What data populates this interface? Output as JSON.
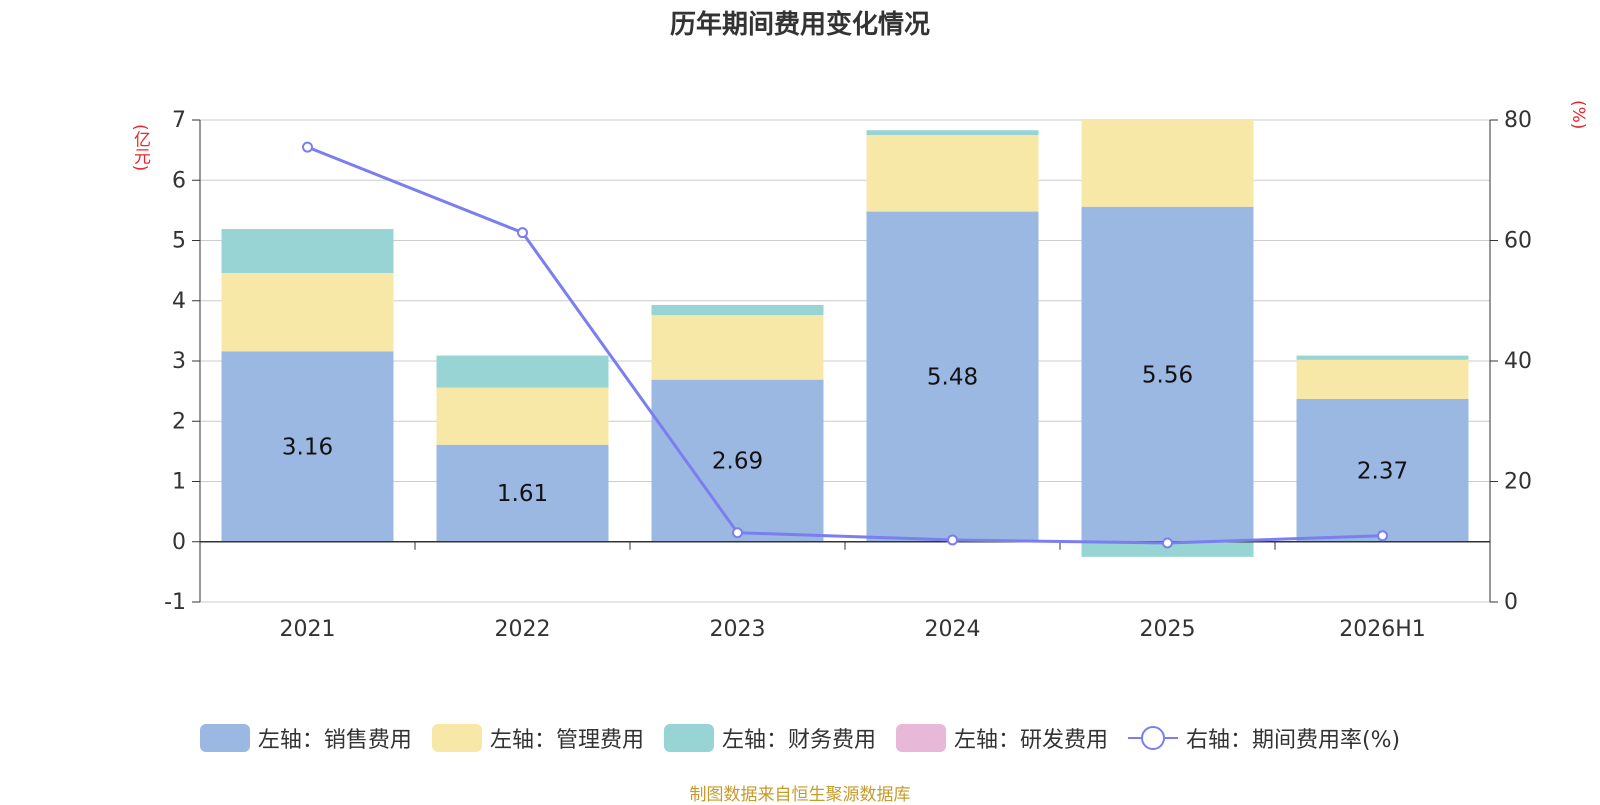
{
  "title": "历年期间费用变化情况",
  "source": "制图数据来自恒生聚源数据库",
  "colors": {
    "sales": "#9bb8e2",
    "admin": "#f8e8a8",
    "finance": "#98d4d4",
    "rnd": "#e8b8d8",
    "rate": "#7b7ef0",
    "unit": "#e8262b",
    "source": "#c79a2b"
  },
  "chart_data": {
    "type": "bar",
    "title": "历年期间费用变化情况",
    "categories": [
      "2021",
      "2022",
      "2023",
      "2024",
      "2025",
      "2026H1"
    ],
    "left_axis": {
      "unit": "(亿元)",
      "ylim": [
        -1,
        7
      ],
      "ticks": [
        "-1",
        "0",
        "1",
        "2",
        "3",
        "4",
        "5",
        "6",
        "7"
      ]
    },
    "right_axis": {
      "unit": "(%)",
      "ylim": [
        0,
        80
      ],
      "ticks": [
        "0",
        "20",
        "40",
        "60",
        "80"
      ]
    },
    "series": [
      {
        "name": "左轴：销售费用",
        "values": [
          3.16,
          1.61,
          2.69,
          5.48,
          5.56,
          2.37
        ],
        "labels": [
          "3.16",
          "1.61",
          "2.69",
          "5.48",
          "5.56",
          "2.37"
        ]
      },
      {
        "name": "左轴：管理费用",
        "values": [
          1.3,
          0.95,
          1.07,
          1.27,
          1.44,
          0.65
        ]
      },
      {
        "name": "左轴：财务费用",
        "values": [
          0.73,
          0.53,
          0.17,
          0.08,
          -0.25,
          0.07
        ]
      },
      {
        "name": "左轴：研发费用",
        "values": [
          0,
          0,
          0,
          0,
          0,
          0
        ]
      },
      {
        "name": "右轴：期间费用率(%)",
        "axis": "right",
        "type": "line",
        "values": [
          75.5,
          61.3,
          11.5,
          10.3,
          9.8,
          11.0
        ]
      }
    ],
    "grid": true,
    "legend_position": "bottom"
  },
  "legend": [
    {
      "label": "左轴：销售费用",
      "color": "#9bb8e2"
    },
    {
      "label": "左轴：管理费用",
      "color": "#f8e8a8"
    },
    {
      "label": "左轴：财务费用",
      "color": "#98d4d4"
    },
    {
      "label": "左轴：研发费用",
      "color": "#e8b8d8"
    },
    {
      "label": "右轴：期间费用率(%)",
      "color": "#7b7ef0"
    }
  ]
}
